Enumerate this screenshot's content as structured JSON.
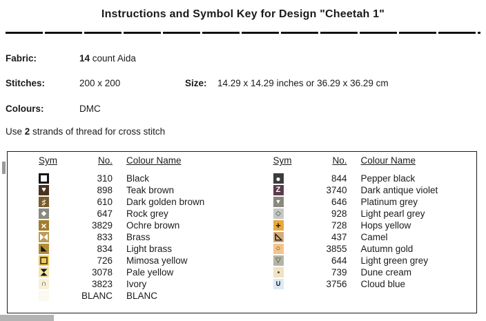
{
  "title": "Instructions and Symbol Key for Design \"Cheetah 1\"",
  "info": {
    "fabric_label": "Fabric:",
    "fabric_count": "14",
    "fabric_rest": " count Aida",
    "stitches_label": "Stitches:",
    "stitches_value": "200 x 200",
    "size_label": "Size:",
    "size_value": "14.29 x 14.29 inches or 36.29 x 36.29 cm",
    "colours_label": "Colours:",
    "colours_value": "DMC",
    "use_prefix": "Use ",
    "use_strands": "2",
    "use_suffix": " strands of thread for cross stitch"
  },
  "key": {
    "headers": {
      "sym": "Sym",
      "no": "No.",
      "name": "Colour Name"
    },
    "left_rows": [
      {
        "no": "310",
        "name": "Black",
        "icon": "open-square-icon",
        "type": "border-square",
        "bg": "#ffffff",
        "fg": "#141414",
        "glyph": ""
      },
      {
        "no": "898",
        "name": "Teak brown",
        "icon": "heart-icon",
        "type": "glyph",
        "bg": "#4a3220",
        "fg": "#ffffff",
        "glyph": "♥",
        "size": 11
      },
      {
        "no": "610",
        "name": "Dark golden brown",
        "icon": "sharp-sign-icon",
        "type": "glyph",
        "bg": "#7a5a2a",
        "fg": "#ffffff",
        "glyph": "♯",
        "size": 12,
        "bold": true
      },
      {
        "no": "647",
        "name": "Rock grey",
        "icon": "filled-diamond-icon",
        "type": "glyph",
        "bg": "#8a8a80",
        "fg": "#ffffff",
        "glyph": "◆",
        "size": 10
      },
      {
        "no": "3829",
        "name": "Ochre brown",
        "icon": "cross-x-icon",
        "type": "glyph",
        "bg": "#a47c2c",
        "fg": "#ffffff",
        "glyph": "×",
        "size": 14,
        "bold": true
      },
      {
        "no": "833",
        "name": "Brass",
        "icon": "bowtie-icon",
        "type": "bowtie",
        "bg": "#bc9c54",
        "fg": "#ffffff",
        "glyph": ""
      },
      {
        "no": "834",
        "name": "Light brass",
        "icon": "filled-corner-triangle-icon",
        "type": "glyph",
        "bg": "#b38e36",
        "fg": "#141414",
        "glyph": "◣",
        "size": 11
      },
      {
        "no": "726",
        "name": "Mimosa yellow",
        "icon": "outline-square-icon",
        "type": "square-outline",
        "bg": "#f0cc58",
        "fg": "#5a4a26",
        "glyph": ""
      },
      {
        "no": "3078",
        "name": "Pale yellow",
        "icon": "hourglass-icon",
        "type": "hourglass",
        "bg": "#f2e6a8",
        "fg": "#141414",
        "glyph": ""
      },
      {
        "no": "3823",
        "name": "Ivory",
        "icon": "arch-cap-icon",
        "type": "glyph",
        "bg": "#f8f0d8",
        "fg": "#333333",
        "glyph": "∩",
        "size": 11,
        "bold": true
      },
      {
        "no": "BLANC",
        "name": "BLANC",
        "icon": "blank-swatch",
        "type": "plain",
        "bg": "#fbf9f0",
        "fg": "#ffffff",
        "glyph": ""
      }
    ],
    "right_rows": [
      {
        "no": "844",
        "name": "Pepper black",
        "icon": "filled-circle-icon",
        "type": "glyph",
        "bg": "#3c3c3c",
        "fg": "#ffffff",
        "glyph": "●",
        "size": 12
      },
      {
        "no": "3740",
        "name": "Dark antique violet",
        "icon": "letter-z-icon",
        "type": "glyph",
        "bg": "#5a3c4c",
        "fg": "#ffffff",
        "glyph": "Z",
        "size": 11,
        "bold": true
      },
      {
        "no": "646",
        "name": "Platinum grey",
        "icon": "filled-down-triangle-icon",
        "type": "glyph",
        "bg": "#88887e",
        "fg": "#ffffff",
        "glyph": "▼",
        "size": 9
      },
      {
        "no": "928",
        "name": "Light pearl grey",
        "icon": "open-diamond-icon",
        "type": "glyph",
        "bg": "#c4c8c4",
        "fg": "#333333",
        "glyph": "◇",
        "size": 10
      },
      {
        "no": "728",
        "name": "Hops yellow",
        "icon": "plus-icon",
        "type": "glyph",
        "bg": "#e8a83c",
        "fg": "#141414",
        "glyph": "+",
        "size": 13,
        "bold": true
      },
      {
        "no": "437",
        "name": "Camel",
        "icon": "outline-corner-triangle-icon",
        "type": "triangle-outline",
        "bg": "#d4ac7c",
        "fg": "#141414",
        "glyph": ""
      },
      {
        "no": "3855",
        "name": "Autumn gold",
        "icon": "open-circle-icon",
        "type": "glyph",
        "bg": "#f4c488",
        "fg": "#333333",
        "glyph": "○",
        "size": 11,
        "bold": true
      },
      {
        "no": "644",
        "name": "Light green grey",
        "icon": "open-down-triangle-icon",
        "type": "glyph",
        "bg": "#b4b4a4",
        "fg": "#333333",
        "glyph": "▽",
        "size": 10
      },
      {
        "no": "739",
        "name": "Dune cream",
        "icon": "dot-icon",
        "type": "dot",
        "bg": "#f0e2c2",
        "fg": "#444444",
        "glyph": "·"
      },
      {
        "no": "3756",
        "name": "Cloud blue",
        "icon": "union-u-icon",
        "type": "glyph",
        "bg": "#dce9f2",
        "fg": "#1a2636",
        "glyph": "∪",
        "size": 11,
        "bold": true
      }
    ]
  }
}
